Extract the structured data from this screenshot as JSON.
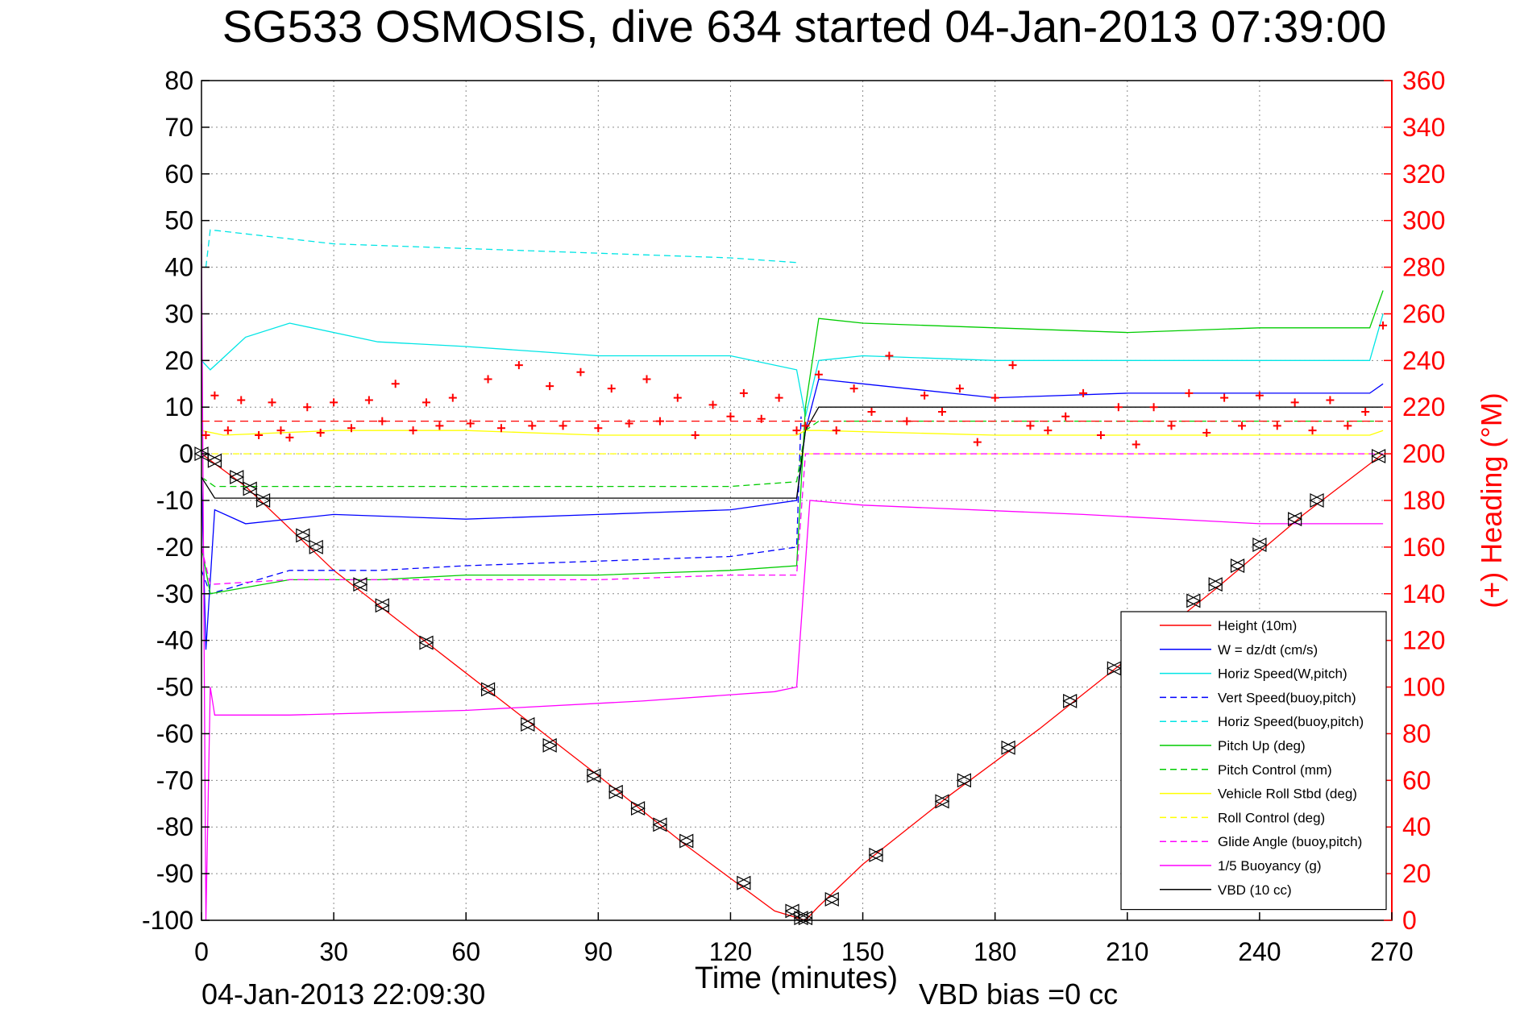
{
  "chart_data": {
    "type": "line",
    "title": "SG533 OSMOSIS, dive 634 started 04-Jan-2013 07:39:00",
    "xlabel": "Time (minutes)",
    "ylabel_right": "(+) Heading (°M)",
    "footer_left": "04-Jan-2013 22:09:30",
    "footer_right": "VBD bias =0 cc",
    "xlim": [
      0,
      270
    ],
    "ylim": [
      -100,
      80
    ],
    "ylim_right": [
      0,
      360
    ],
    "x_ticks": [
      "0",
      "30",
      "60",
      "90",
      "120",
      "150",
      "180",
      "210",
      "240",
      "270"
    ],
    "y_ticks": [
      "80",
      "70",
      "60",
      "50",
      "40",
      "30",
      "20",
      "10",
      "0",
      "-10",
      "-20",
      "-30",
      "-40",
      "-50",
      "-60",
      "-70",
      "-80",
      "-90",
      "-100"
    ],
    "y_right_ticks": [
      "360",
      "340",
      "320",
      "300",
      "280",
      "260",
      "240",
      "220",
      "200",
      "180",
      "160",
      "140",
      "120",
      "100",
      "80",
      "60",
      "40",
      "20",
      "0"
    ],
    "grid": true,
    "legend_position": "bottom-right",
    "series": [
      {
        "name": "Height (10m)",
        "color": "#ff0000",
        "style": "solid",
        "x": [
          0,
          10,
          30,
          60,
          90,
          110,
          130,
          137,
          140,
          150,
          170,
          190,
          210,
          230,
          250,
          268
        ],
        "y": [
          0,
          -7,
          -25,
          -47,
          -69,
          -84,
          -98,
          -100,
          -97,
          -88,
          -73,
          -59,
          -44,
          -29,
          -13,
          0
        ]
      },
      {
        "name": "W = dz/dt (cm/s)",
        "color": "#0000ff",
        "style": "solid",
        "x": [
          0,
          1,
          3,
          10,
          30,
          60,
          90,
          120,
          135,
          137,
          140,
          150,
          180,
          210,
          240,
          265,
          268
        ],
        "y": [
          -5,
          -42,
          -12,
          -15,
          -13,
          -14,
          -13,
          -12,
          -10,
          5,
          16,
          15,
          12,
          13,
          13,
          13,
          15
        ]
      },
      {
        "name": "Horiz Speed(W,pitch)",
        "color": "#00e5e5",
        "style": "solid",
        "x": [
          0,
          2,
          10,
          20,
          40,
          60,
          90,
          120,
          135,
          137,
          140,
          150,
          180,
          210,
          240,
          265,
          268
        ],
        "y": [
          20,
          18,
          25,
          28,
          24,
          23,
          21,
          21,
          18,
          8,
          20,
          21,
          20,
          20,
          20,
          20,
          30
        ]
      },
      {
        "name": "Vert Speed(buoy,pitch)",
        "color": "#0000ff",
        "style": "dashed",
        "x": [
          0,
          2,
          20,
          40,
          60,
          90,
          120,
          135,
          136
        ],
        "y": [
          -25,
          -30,
          -25,
          -25,
          -24,
          -23,
          -22,
          -20,
          8
        ]
      },
      {
        "name": "Horiz Speed(buoy,pitch)",
        "color": "#00e5e5",
        "style": "dashed",
        "x": [
          1,
          2,
          30,
          60,
          90,
          120,
          135
        ],
        "y": [
          40,
          48,
          45,
          44,
          43,
          42,
          41
        ]
      },
      {
        "name": "Pitch Up (deg)",
        "color": "#00cc00",
        "style": "solid",
        "x": [
          0,
          2,
          20,
          40,
          60,
          90,
          120,
          135,
          137,
          140,
          150,
          180,
          210,
          240,
          265,
          268
        ],
        "y": [
          -20,
          -30,
          -27,
          -27,
          -26,
          -26,
          -25,
          -24,
          10,
          29,
          28,
          27,
          26,
          27,
          27,
          35
        ]
      },
      {
        "name": "Pitch Control (mm)",
        "color": "#00cc00",
        "style": "dashed",
        "x": [
          0,
          3,
          60,
          120,
          135,
          137,
          140,
          200,
          268
        ],
        "y": [
          -5,
          -7,
          -7,
          -7,
          -6,
          5,
          7,
          7,
          7
        ]
      },
      {
        "name": "Vehicle Roll Stbd (deg)",
        "color": "#ffff00",
        "style": "solid",
        "x": [
          0,
          5,
          30,
          60,
          90,
          120,
          135,
          137,
          140,
          180,
          210,
          240,
          265,
          268
        ],
        "y": [
          5,
          4,
          5,
          5,
          4,
          4,
          4,
          5,
          5,
          4,
          4,
          4,
          4,
          5
        ]
      },
      {
        "name": "Roll Control (deg)",
        "color": "#ffff00",
        "style": "dashed",
        "x": [
          0,
          5,
          60,
          120,
          135,
          137,
          140,
          200,
          268
        ],
        "y": [
          0,
          0,
          0,
          0,
          0,
          0,
          0,
          0,
          0
        ]
      },
      {
        "name": "Glide Angle (buoy,pitch)",
        "color": "#ff00ff",
        "style": "dashed",
        "x": [
          0,
          2,
          20,
          40,
          60,
          90,
          120,
          135,
          137,
          140,
          200,
          268
        ],
        "y": [
          -20,
          -28,
          -27,
          -27,
          -27,
          -27,
          -26,
          -26,
          0,
          0,
          0,
          0
        ]
      },
      {
        "name": "1/5 Buoyancy (g)",
        "color": "#ff00ff",
        "style": "solid",
        "x": [
          0,
          1,
          2,
          3,
          20,
          60,
          100,
          130,
          135,
          138,
          150,
          200,
          240,
          268
        ],
        "y": [
          45,
          -100,
          -50,
          -56,
          -56,
          -55,
          -53,
          -51,
          -50,
          -10,
          -11,
          -13,
          -15,
          -15
        ]
      },
      {
        "name": "VBD (10 cc)",
        "color": "#000000",
        "style": "solid",
        "x": [
          0,
          2,
          3,
          60,
          120,
          135,
          137,
          140,
          180,
          240,
          268
        ],
        "y": [
          -5,
          -8,
          -9.5,
          -9.5,
          -9.5,
          -9.5,
          5,
          10,
          10,
          10,
          10
        ]
      }
    ],
    "heading_series": {
      "name": "(+) Heading (°M)",
      "color": "#ff0000",
      "marker": "+",
      "x": [
        1,
        3,
        6,
        9,
        13,
        16,
        18,
        20,
        24,
        27,
        30,
        34,
        38,
        41,
        44,
        48,
        51,
        54,
        57,
        61,
        65,
        68,
        72,
        75,
        79,
        82,
        86,
        90,
        93,
        97,
        101,
        104,
        108,
        112,
        116,
        120,
        123,
        127,
        131,
        135,
        137,
        140,
        144,
        148,
        152,
        156,
        160,
        164,
        168,
        172,
        176,
        180,
        184,
        188,
        192,
        196,
        200,
        204,
        208,
        212,
        216,
        220,
        224,
        228,
        232,
        236,
        240,
        244,
        248,
        252,
        256,
        260,
        264,
        268
      ],
      "y": [
        208,
        225,
        210,
        223,
        208,
        222,
        210,
        207,
        220,
        209,
        222,
        211,
        223,
        214,
        230,
        210,
        222,
        212,
        224,
        213,
        232,
        211,
        238,
        212,
        229,
        212,
        235,
        211,
        228,
        213,
        232,
        214,
        224,
        208,
        221,
        216,
        226,
        215,
        224,
        210,
        212,
        234,
        210,
        228,
        218,
        242,
        214,
        225,
        218,
        228,
        205,
        224,
        238,
        212,
        210,
        216,
        226,
        208,
        220,
        204,
        220,
        212,
        226,
        209,
        224,
        212,
        225,
        212,
        222,
        210,
        223,
        212,
        218,
        255
      ]
    },
    "heading_mean": {
      "color": "#ff0000",
      "style": "dashed",
      "y": 214
    },
    "markers": {
      "marker": "triangles",
      "color": "#000000",
      "x": [
        0,
        3,
        8,
        11,
        14,
        23,
        26,
        36,
        41,
        51,
        65,
        74,
        79,
        89,
        94,
        99,
        104,
        110,
        123,
        134,
        136,
        137,
        143,
        153,
        168,
        173,
        183,
        197,
        207,
        225,
        230,
        235,
        240,
        248,
        253,
        267
      ],
      "y": [
        0,
        -1.5,
        -5,
        -7.5,
        -10,
        -17.5,
        -20,
        -28,
        -32.5,
        -40.5,
        -50.5,
        -58,
        -62.5,
        -69,
        -72.5,
        -76,
        -79.5,
        -83,
        -92,
        -98,
        -99.5,
        -99.5,
        -95.5,
        -86,
        -74.5,
        -70,
        -63,
        -53,
        -46,
        -31.5,
        -28,
        -24,
        -19.5,
        -14,
        -10,
        -0.5
      ]
    }
  }
}
